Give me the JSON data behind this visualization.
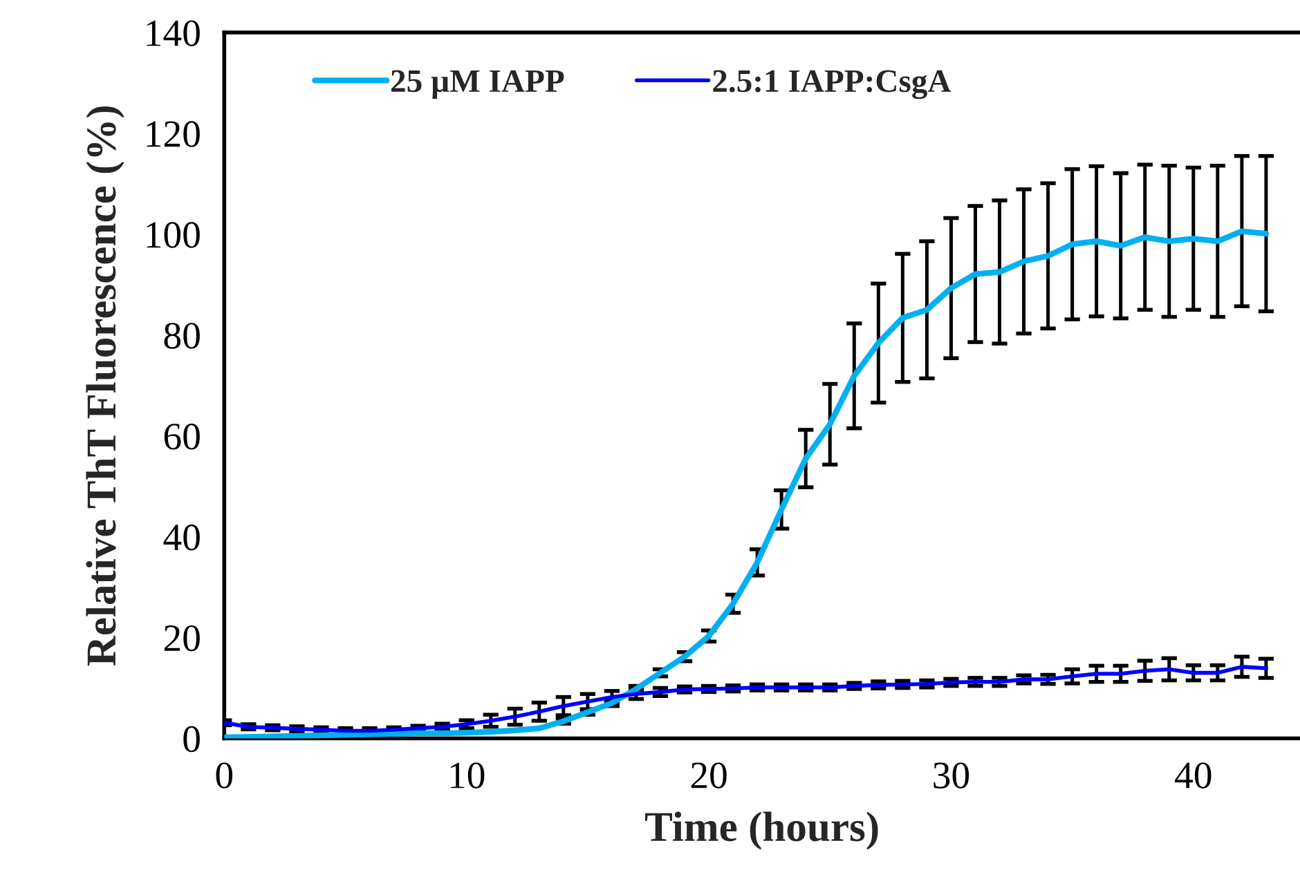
{
  "chart_data": {
    "type": "line",
    "xlabel": "Time (hours)",
    "ylabel": "Relative ThT Fluorescence (%)",
    "x": [
      0,
      1,
      2,
      3,
      4,
      5,
      6,
      7,
      8,
      9,
      10,
      11,
      12,
      13,
      14,
      15,
      16,
      17,
      18,
      19,
      20,
      21,
      22,
      23,
      24,
      25,
      26,
      27,
      28,
      29,
      30,
      31,
      32,
      33,
      34,
      35,
      36,
      37,
      38,
      39,
      40,
      41,
      42,
      43
    ],
    "xlim": [
      0,
      44.4
    ],
    "xticks": [
      0,
      10,
      20,
      30,
      40
    ],
    "ylim": [
      0,
      140
    ],
    "yticks": [
      0,
      20,
      40,
      60,
      80,
      100,
      120,
      140
    ],
    "grid": false,
    "legend": "top",
    "marker": "none",
    "line_style": "solid",
    "series": [
      {
        "name": "25 µM IAPP",
        "color": "#00b0f0",
        "values": [
          0.2,
          0.3,
          0.4,
          0.5,
          0.6,
          0.7,
          0.8,
          0.9,
          1.0,
          1.0,
          1.1,
          1.3,
          1.6,
          2.0,
          3.4,
          5.2,
          7.0,
          9.8,
          13.0,
          16.2,
          20.3,
          26.7,
          34.9,
          45.4,
          55.5,
          62.3,
          71.9,
          78.4,
          83.4,
          85.0,
          89.3,
          92.1,
          92.5,
          94.6,
          95.7,
          98.0,
          98.6,
          97.7,
          99.4,
          98.6,
          99.1,
          98.6,
          100.6,
          100.1
        ],
        "errors": [
          null,
          null,
          null,
          null,
          null,
          null,
          null,
          null,
          null,
          null,
          null,
          null,
          null,
          null,
          0.5,
          0.5,
          0.6,
          0.6,
          0.7,
          0.9,
          1.1,
          1.8,
          2.6,
          3.8,
          5.7,
          8.0,
          10.4,
          11.8,
          12.7,
          13.6,
          13.9,
          13.5,
          14.2,
          14.3,
          14.4,
          14.9,
          14.9,
          14.4,
          14.4,
          15.0,
          14.1,
          15.0,
          14.9,
          15.4
        ]
      },
      {
        "name": "2.5:1 IAPP:CsgA",
        "color": "#0000ff",
        "values": [
          3.1,
          2.3,
          2.1,
          1.9,
          1.7,
          1.5,
          1.5,
          1.7,
          2.0,
          2.3,
          2.8,
          3.5,
          4.3,
          5.3,
          6.4,
          7.3,
          8.2,
          8.8,
          9.2,
          9.7,
          9.8,
          9.9,
          10.1,
          10.1,
          10.1,
          10.1,
          10.4,
          10.6,
          10.7,
          10.8,
          11.1,
          11.2,
          11.2,
          11.7,
          11.7,
          12.3,
          12.8,
          12.8,
          13.4,
          13.7,
          13.0,
          13.0,
          14.2,
          13.9
        ],
        "errors": [
          0.5,
          0.5,
          0.5,
          0.5,
          0.5,
          0.5,
          0.5,
          0.5,
          0.5,
          0.6,
          0.8,
          1.2,
          1.6,
          1.8,
          1.8,
          1.5,
          1.2,
          1.0,
          0.8,
          0.6,
          0.6,
          0.6,
          0.6,
          0.6,
          0.6,
          0.6,
          0.6,
          0.7,
          0.7,
          0.7,
          0.7,
          0.8,
          0.8,
          0.8,
          0.9,
          1.4,
          1.6,
          1.6,
          2.0,
          2.2,
          1.5,
          1.5,
          2.0,
          1.9
        ]
      }
    ]
  }
}
